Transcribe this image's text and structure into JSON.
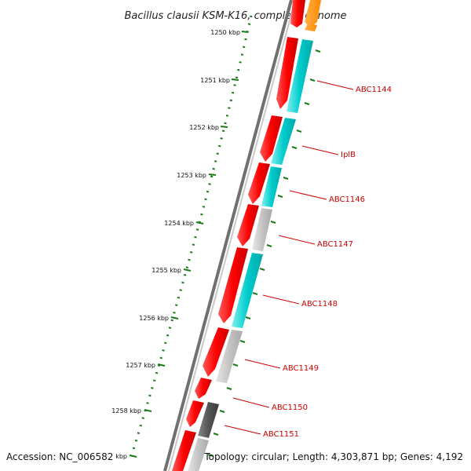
{
  "title": "Bacillus clausii KSM-K16, complete genome",
  "footer": {
    "accession": "Accession: NC_006582",
    "summary": "Topology: circular; Length: 4,303,871 bp; Genes: 4,192"
  },
  "scale": {
    "ticks": [
      "1250 kbp",
      "1251 kbp",
      "1252 kbp",
      "1253 kbp",
      "1254 kbp",
      "1255 kbp",
      "1256 kbp",
      "1257 kbp",
      "1258 kbp",
      "kbp"
    ]
  },
  "gene_labels": [
    "ABC1144",
    "IplB",
    "ABC1146",
    "ABC1147",
    "ABC1148",
    "ABC1149",
    "ABC1150",
    "ABC1151"
  ],
  "colors": {
    "forward_cds": "#ff0000",
    "cyan_feature": "#00cccc",
    "gray_feature": "#c0c0c0",
    "dark_feature": "#555555",
    "orange_feature": "#ff8800",
    "ruler": "#1a7a1a",
    "label_text": "#cc0000",
    "backbone": "#808080"
  }
}
